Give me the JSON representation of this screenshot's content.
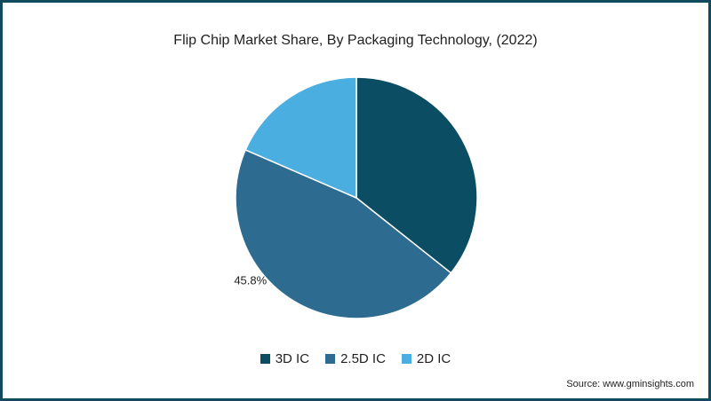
{
  "chart_data": {
    "type": "pie",
    "title": "Flip Chip Market Share, By Packaging Technology, (2022)",
    "categories": [
      "3D IC",
      "2.5D IC",
      "2D IC"
    ],
    "values": [
      35.7,
      45.8,
      18.5
    ],
    "colors": [
      "#0b4d63",
      "#2e6b91",
      "#4baee0"
    ],
    "data_labels": [
      "",
      "45.8%",
      ""
    ],
    "legend_position": "bottom"
  },
  "source": "Source: www.gminsights.com"
}
